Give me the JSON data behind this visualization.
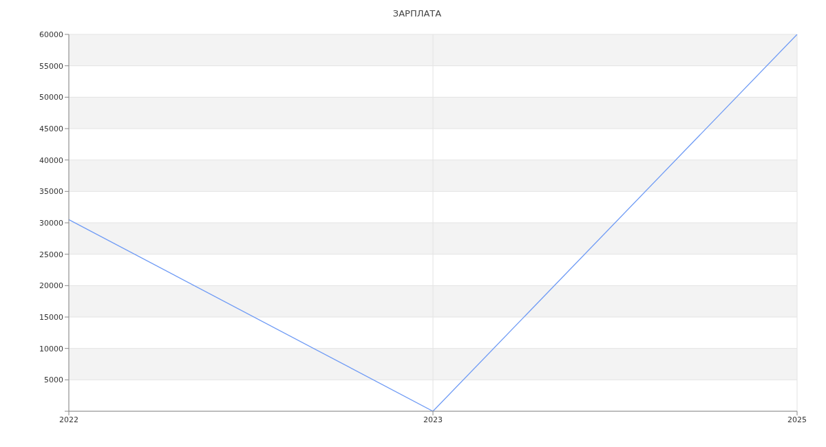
{
  "chart_data": {
    "type": "line",
    "title": "ЗАРПЛАТА",
    "categories": [
      "2022",
      "2023",
      "2025"
    ],
    "series": [
      {
        "color": "#6f9bf5",
        "values": [
          30500,
          0,
          60000
        ]
      }
    ],
    "ylim": [
      0,
      60000
    ],
    "yticks": [
      {
        "value": 0,
        "label": null
      },
      5000,
      10000,
      15000,
      20000,
      25000,
      30000,
      35000,
      40000,
      45000,
      50000,
      55000,
      60000
    ],
    "grid": true,
    "marker": "none",
    "line_style": "solid"
  }
}
